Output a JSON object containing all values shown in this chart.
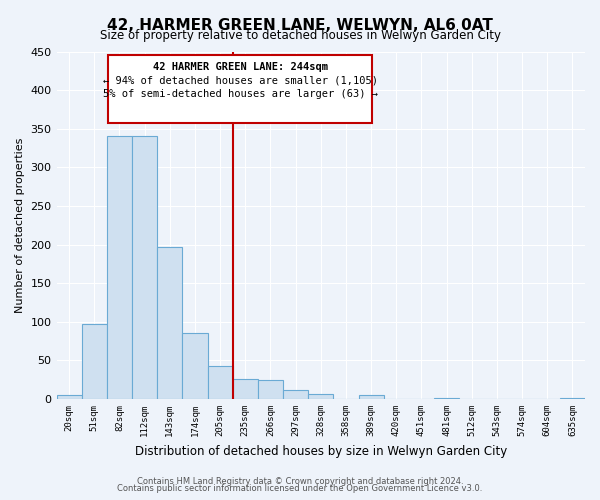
{
  "title": "42, HARMER GREEN LANE, WELWYN, AL6 0AT",
  "subtitle": "Size of property relative to detached houses in Welwyn Garden City",
  "xlabel": "Distribution of detached houses by size in Welwyn Garden City",
  "ylabel": "Number of detached properties",
  "bin_labels": [
    "20sqm",
    "51sqm",
    "82sqm",
    "112sqm",
    "143sqm",
    "174sqm",
    "205sqm",
    "235sqm",
    "266sqm",
    "297sqm",
    "328sqm",
    "358sqm",
    "389sqm",
    "420sqm",
    "451sqm",
    "481sqm",
    "512sqm",
    "543sqm",
    "574sqm",
    "604sqm",
    "635sqm"
  ],
  "bin_values": [
    5,
    97,
    340,
    340,
    197,
    86,
    43,
    26,
    25,
    12,
    6,
    0,
    5,
    0,
    0,
    2,
    0,
    0,
    0,
    0,
    2
  ],
  "bar_color": "#cfe0f0",
  "bar_edge_color": "#6aaad4",
  "annotation_title": "42 HARMER GREEN LANE: 244sqm",
  "annotation_line1": "← 94% of detached houses are smaller (1,105)",
  "annotation_line2": "5% of semi-detached houses are larger (63) →",
  "annotation_box_color": "#c00000",
  "ref_line_index": 7,
  "ylim": [
    0,
    450
  ],
  "yticks": [
    0,
    50,
    100,
    150,
    200,
    250,
    300,
    350,
    400,
    450
  ],
  "footnote1": "Contains HM Land Registry data © Crown copyright and database right 2024.",
  "footnote2": "Contains public sector information licensed under the Open Government Licence v3.0.",
  "bg_color": "#eef3fa"
}
